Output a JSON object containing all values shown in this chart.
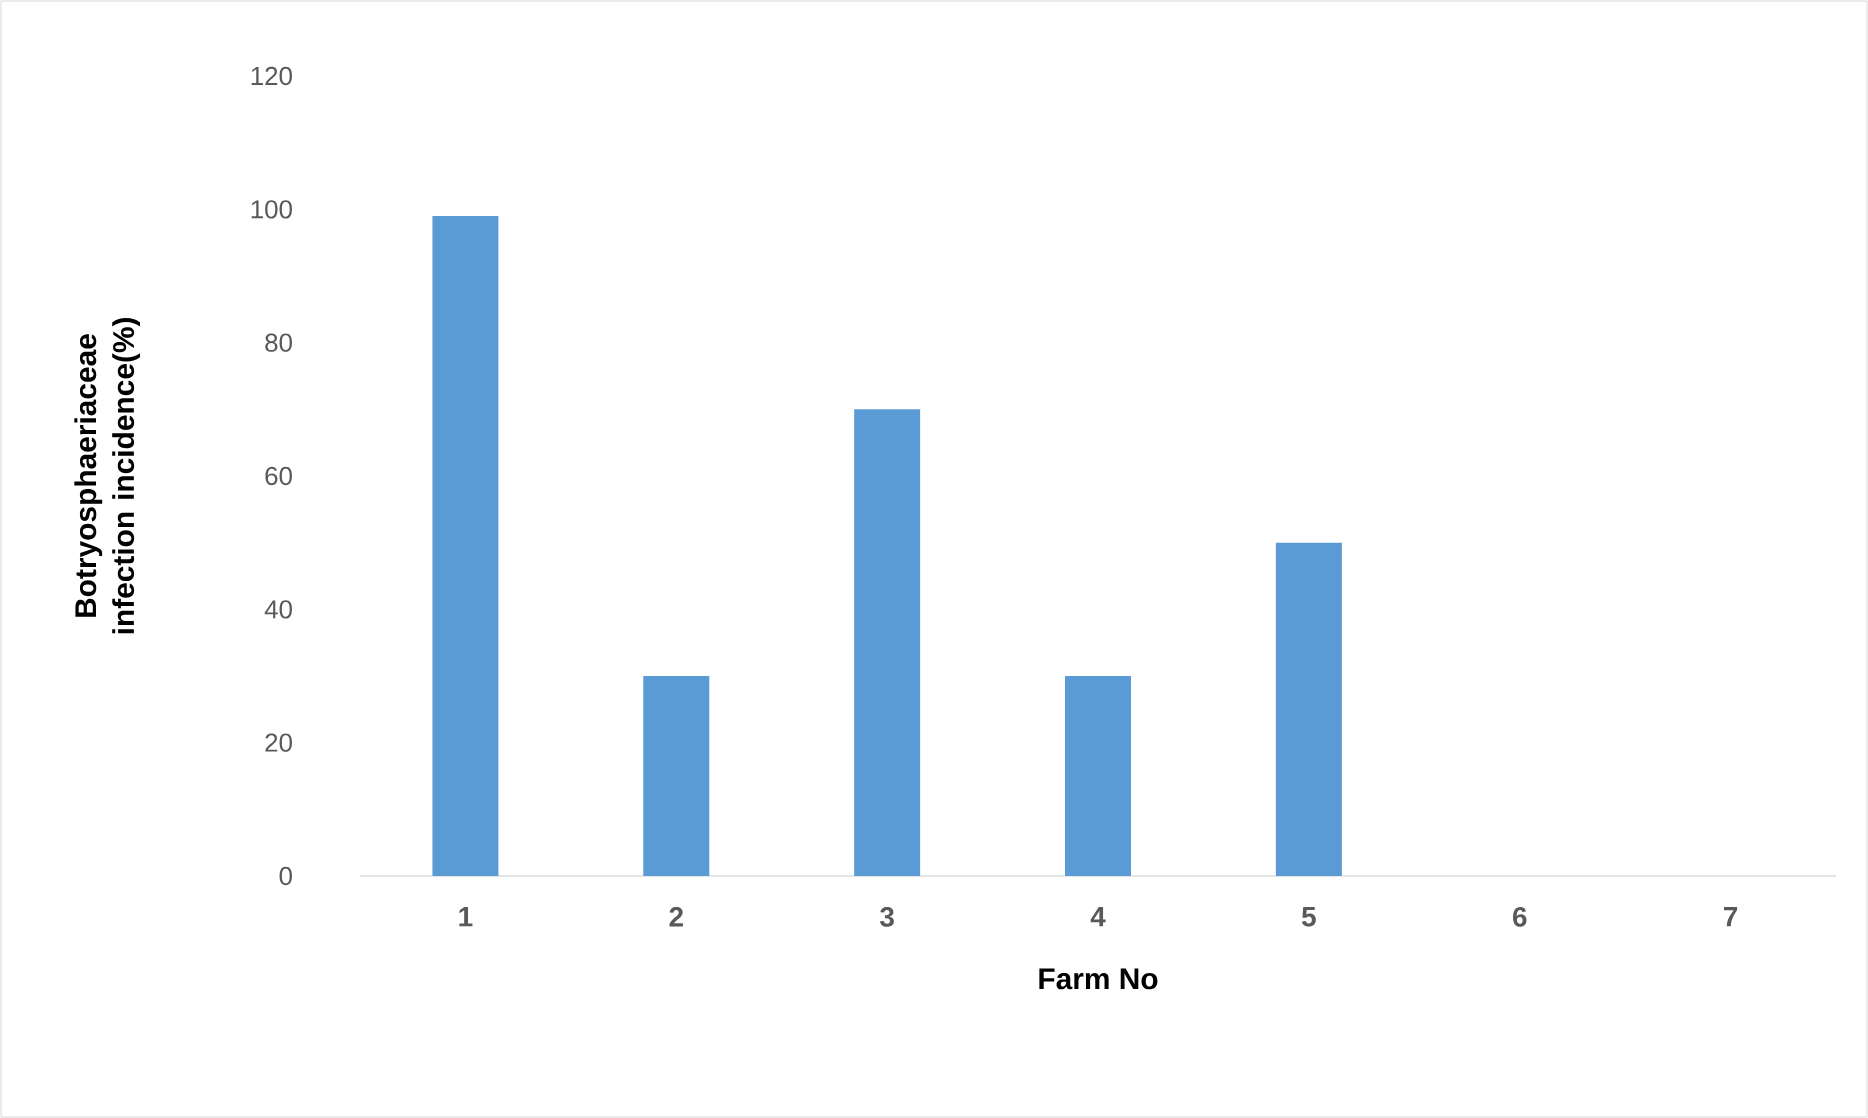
{
  "chart_data": {
    "type": "bar",
    "xlabel": "Farm No",
    "ylabel": "Botryosphaeriaceae infection incidence(%)",
    "categories": [
      "1",
      "2",
      "3",
      "4",
      "5",
      "6",
      "7"
    ],
    "values": [
      99,
      30,
      70,
      30,
      50,
      0,
      0
    ],
    "color": "#5b9bd5",
    "ylim": [
      0,
      120
    ],
    "yticks": [
      0,
      20,
      40,
      60,
      80,
      100,
      120
    ]
  }
}
